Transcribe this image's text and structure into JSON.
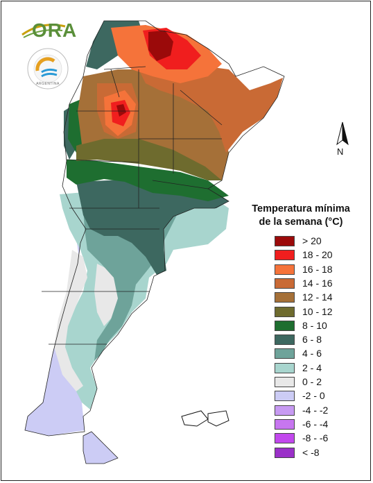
{
  "logo": {
    "ora_text": "ORA",
    "smn_seal_text": "ARGENTINA"
  },
  "north_arrow": {
    "label": "N"
  },
  "legend": {
    "title_line1": "Temperatura mínima",
    "title_line2": "de la semana (°C)",
    "items": [
      {
        "label": "> 20",
        "color": "#9b0a0a"
      },
      {
        "label": "18 - 20",
        "color": "#f01e1e"
      },
      {
        "label": "16 - 18",
        "color": "#f5733a"
      },
      {
        "label": "14 - 16",
        "color": "#c96a35"
      },
      {
        "label": "12 - 14",
        "color": "#a57038"
      },
      {
        "label": "10 - 12",
        "color": "#6e6b2e"
      },
      {
        "label": "8 - 10",
        "color": "#1e6e30"
      },
      {
        "label": "6 - 8",
        "color": "#3d6860"
      },
      {
        "label": "4 - 6",
        "color": "#6ea39a"
      },
      {
        "label": "2 - 4",
        "color": "#a8d5ce"
      },
      {
        "label": "0 - 2",
        "color": "#e8e8e8"
      },
      {
        "label": "-2 - 0",
        "color": "#ccccf5"
      },
      {
        "label": "-4 - -2",
        "color": "#c79af2"
      },
      {
        "label": "-6 - -4",
        "color": "#c776f0"
      },
      {
        "label": "-8 - -6",
        "color": "#c248ed"
      },
      {
        "label": "< -8",
        "color": "#9a30c8"
      }
    ]
  }
}
